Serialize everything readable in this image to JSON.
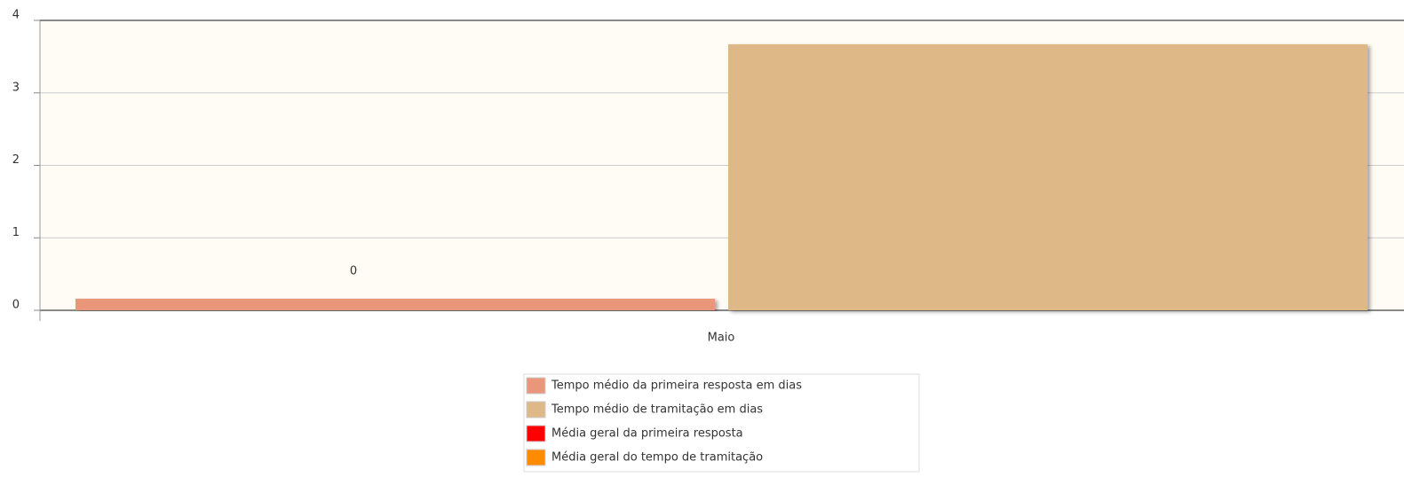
{
  "chart_data": {
    "type": "bar",
    "categories": [
      "Maio"
    ],
    "series": [
      {
        "name": "Tempo médio da primeira resposta em dias",
        "color": "#e9967a",
        "values": [
          0.16
        ],
        "value_labels": [
          "0"
        ]
      },
      {
        "name": "Tempo médio de tramitação em dias",
        "color": "#deb887",
        "values": [
          3.67
        ]
      },
      {
        "name": "Média geral da primeira resposta",
        "color": "#ff0000",
        "values": [
          null
        ]
      },
      {
        "name": "Média geral do tempo de tramitação",
        "color": "#ff8c00",
        "values": [
          null
        ]
      }
    ],
    "ylim": [
      0,
      4
    ],
    "yticks": [
      0,
      1,
      2,
      3,
      4
    ],
    "grid": true,
    "legend": "bottom"
  }
}
